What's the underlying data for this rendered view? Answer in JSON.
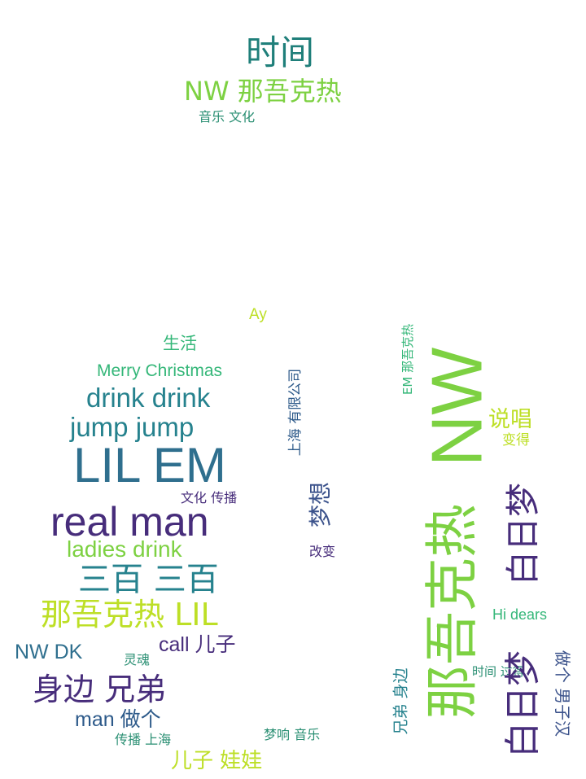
{
  "colors": {
    "c1": "#1f7f7a",
    "c2": "#7dd142",
    "c3": "#2a8f73",
    "c4": "#35b779",
    "c5": "#bddf26",
    "c6": "#26828e",
    "c7": "#2f6f8e",
    "c8": "#3b528b",
    "c9": "#472d7b",
    "c10": "#440154",
    "c11": "#2d5a8a",
    "c12": "#5ec962"
  },
  "words": [
    {
      "id": "shijian-top",
      "text": "时间",
      "color": "c1"
    },
    {
      "id": "nw-nawukere-top",
      "text": "NW 那吾克热",
      "color": "c2"
    },
    {
      "id": "yinyue-wenhua",
      "text": "音乐 文化",
      "color": "c3"
    },
    {
      "id": "ay",
      "text": "Ay",
      "color": "c5"
    },
    {
      "id": "shenghuo",
      "text": "生活",
      "color": "c4"
    },
    {
      "id": "merry-christmas",
      "text": "Merry Christmas",
      "color": "c4"
    },
    {
      "id": "drink-drink",
      "text": "drink drink",
      "color": "c6"
    },
    {
      "id": "jump-jump",
      "text": "jump jump",
      "color": "c6"
    },
    {
      "id": "lil-em",
      "text": "LIL EM",
      "color": "c7"
    },
    {
      "id": "wenhua-chuanbo",
      "text": "文化 传播",
      "color": "c9"
    },
    {
      "id": "real-man",
      "text": "real man",
      "color": "c9"
    },
    {
      "id": "ladies-drink",
      "text": "ladies drink",
      "color": "c2"
    },
    {
      "id": "sanbai-sanbai",
      "text": "三百 三百",
      "color": "c6"
    },
    {
      "id": "nawukere-lil",
      "text": "那吾克热 LIL",
      "color": "c5"
    },
    {
      "id": "nw-dk",
      "text": "NW DK",
      "color": "c7"
    },
    {
      "id": "linghun",
      "text": "灵魂",
      "color": "c3"
    },
    {
      "id": "call-erzi",
      "text": "call 儿子",
      "color": "c9"
    },
    {
      "id": "shenbian-xiongdi",
      "text": "身边 兄弟",
      "color": "c9"
    },
    {
      "id": "man-zuoge",
      "text": "man 做个",
      "color": "c11"
    },
    {
      "id": "chuanbo-shanghai",
      "text": "传播 上海",
      "color": "c3"
    },
    {
      "id": "mengxiang-yinyue",
      "text": "梦响 音乐",
      "color": "c3"
    },
    {
      "id": "erzi-wawa",
      "text": "儿子 娃娃",
      "color": "c5"
    },
    {
      "id": "shanghai-company",
      "text": "上海 有限公司",
      "color": "c11"
    },
    {
      "id": "mengxiang",
      "text": "梦想",
      "color": "c8"
    },
    {
      "id": "gaibian",
      "text": "改变",
      "color": "c9"
    },
    {
      "id": "em-nawukere",
      "text": "EM 那吾克热",
      "color": "c4"
    },
    {
      "id": "nw-big",
      "text": "NW",
      "color": "c2"
    },
    {
      "id": "nawukere-big",
      "text": "那吾克热",
      "color": "c2"
    },
    {
      "id": "shuochang",
      "text": "说唱",
      "color": "c5"
    },
    {
      "id": "biande",
      "text": "变得",
      "color": "c5"
    },
    {
      "id": "bairimeng-1",
      "text": "白日梦",
      "color": "c9"
    },
    {
      "id": "hi-dears",
      "text": "Hi dears",
      "color": "c4"
    },
    {
      "id": "xiongdi-shenbian",
      "text": "兄弟 身边",
      "color": "c6"
    },
    {
      "id": "shijian-guode",
      "text": "时间 过得",
      "color": "c3"
    },
    {
      "id": "baimeng-2",
      "text": "白日梦",
      "color": "c9"
    },
    {
      "id": "zuoge-nanzihan",
      "text": "做个 男子汉",
      "color": "c8"
    }
  ]
}
